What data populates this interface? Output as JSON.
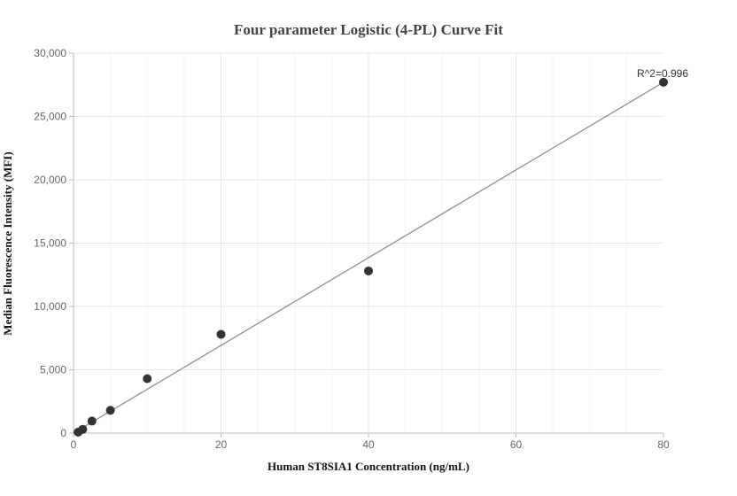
{
  "chart_data": {
    "type": "scatter",
    "title": "Four parameter Logistic (4-PL) Curve Fit",
    "xlabel": "Human ST8SIA1 Concentration (ng/mL)",
    "ylabel": "Median Fluorescence Intensity (MFI)",
    "xlim": [
      0,
      80
    ],
    "ylim": [
      0,
      30000
    ],
    "x_ticks": [
      0,
      20,
      40,
      60,
      80
    ],
    "x_tick_labels": [
      "0",
      "20",
      "40",
      "60",
      "80"
    ],
    "y_ticks": [
      0,
      5000,
      10000,
      15000,
      20000,
      25000,
      30000
    ],
    "y_tick_labels": [
      "0",
      "5,000",
      "10,000",
      "15,000",
      "20,000",
      "25,000",
      "30,000"
    ],
    "grid": true,
    "points": [
      {
        "x": 0.625,
        "y": 80
      },
      {
        "x": 1.25,
        "y": 300
      },
      {
        "x": 2.5,
        "y": 950
      },
      {
        "x": 5,
        "y": 1800
      },
      {
        "x": 10,
        "y": 4300
      },
      {
        "x": 20,
        "y": 7800
      },
      {
        "x": 40,
        "y": 12800
      },
      {
        "x": 80,
        "y": 27700
      }
    ],
    "fit_line": [
      {
        "x": 0,
        "y": 0
      },
      {
        "x": 80,
        "y": 27700
      }
    ],
    "annotation": {
      "text": "R^2=0.996",
      "x": 80,
      "y": 27700
    },
    "colors": {
      "points": "#333333",
      "fit_line": "#888888",
      "grid": "#e8e8e8",
      "axis": "#cccccc"
    }
  }
}
